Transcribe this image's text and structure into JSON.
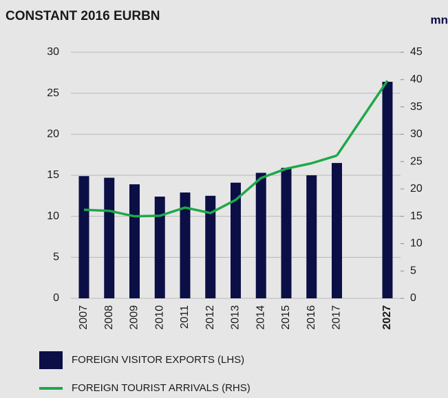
{
  "chart_data": {
    "type": "bar-line",
    "title": "CONSTANT 2016 EURBN",
    "y2_unit_label": "mn",
    "categories": [
      "2007",
      "2008",
      "2009",
      "2010",
      "2011",
      "2012",
      "2013",
      "2014",
      "2015",
      "2016",
      "2017",
      null,
      "2027"
    ],
    "bold_categories": [
      "2027"
    ],
    "series": [
      {
        "name": "FOREIGN VISITOR EXPORTS (LHS)",
        "kind": "bar",
        "color": "#0b0f45",
        "values": [
          14.9,
          14.7,
          13.9,
          12.4,
          12.9,
          12.5,
          14.1,
          15.3,
          15.9,
          15.0,
          16.5,
          null,
          26.4
        ]
      },
      {
        "name": "FOREIGN TOURIST ARRIVALS (RHS)",
        "kind": "line",
        "axis": "y2",
        "color": "#1ea84a",
        "values": [
          16.2,
          16.0,
          15.0,
          15.1,
          16.6,
          15.6,
          18.0,
          22.0,
          23.7,
          24.7,
          26.1,
          null,
          39.8
        ]
      }
    ],
    "ylim": [
      0,
      30
    ],
    "yticks": [
      0,
      5,
      10,
      15,
      20,
      25,
      30
    ],
    "y2lim": [
      0,
      45
    ],
    "y2ticks": [
      0,
      5,
      10,
      15,
      20,
      25,
      30,
      35,
      40,
      45
    ],
    "grid": true
  }
}
